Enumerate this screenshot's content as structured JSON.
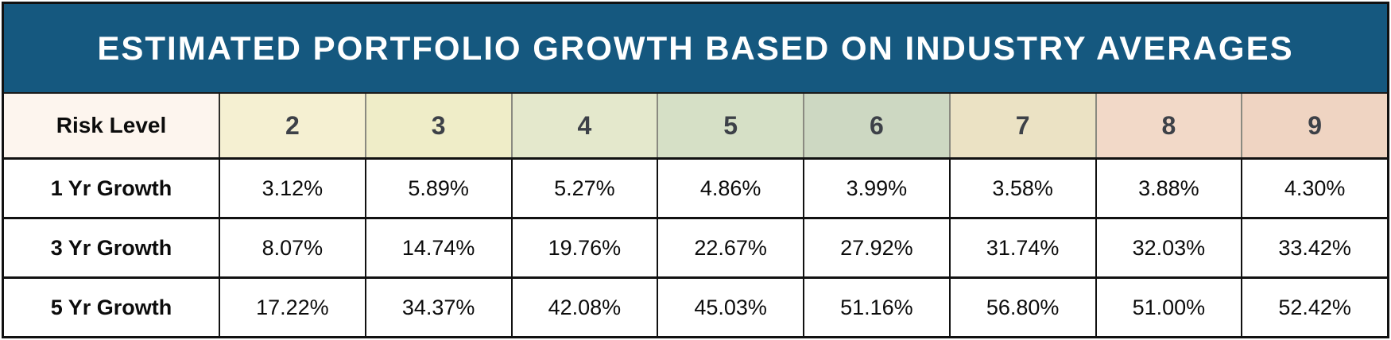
{
  "title": "ESTIMATED PORTFOLIO GROWTH BASED ON INDUSTRY AVERAGES",
  "table": {
    "corner_label": "Risk Level",
    "risk_levels": [
      "2",
      "3",
      "4",
      "5",
      "6",
      "7",
      "8",
      "9"
    ],
    "rows": [
      {
        "label": "1 Yr Growth",
        "values": [
          "3.12%",
          "5.89%",
          "5.27%",
          "4.86%",
          "3.99%",
          "3.58%",
          "3.88%",
          "4.30%"
        ]
      },
      {
        "label": "3 Yr Growth",
        "values": [
          "8.07%",
          "14.74%",
          "19.76%",
          "22.67%",
          "27.92%",
          "31.74%",
          "32.03%",
          "33.42%"
        ]
      },
      {
        "label": "5 Yr Growth",
        "values": [
          "17.22%",
          "34.37%",
          "42.08%",
          "45.03%",
          "51.16%",
          "56.80%",
          "51.00%",
          "52.42%"
        ]
      }
    ]
  },
  "palette": {
    "title_bar_blue": "#15587f",
    "title_text": "#ffffff",
    "outer_border": "#111111",
    "corner_cell_bg": "#fdf5ee",
    "risk_2_bg": "#f5f0d2",
    "risk_3_bg": "#efedc8",
    "risk_4_bg": "#e4e8cc",
    "risk_5_bg": "#d6e0c6",
    "risk_6_bg": "#cdd8c2",
    "risk_7_bg": "#ebe2c4",
    "risk_8_bg": "#f2d9c8",
    "risk_9_bg": "#efd4c2",
    "header_number_text": "#3d4148",
    "body_text": "#0c0c0c"
  },
  "chart_data": {
    "type": "table",
    "title": "ESTIMATED PORTFOLIO GROWTH BASED ON INDUSTRY AVERAGES",
    "columns": [
      "Risk Level",
      "2",
      "3",
      "4",
      "5",
      "6",
      "7",
      "8",
      "9"
    ],
    "rows": [
      {
        "label": "1 Yr Growth",
        "values_pct": [
          3.12,
          5.89,
          5.27,
          4.86,
          3.99,
          3.58,
          3.88,
          4.3
        ]
      },
      {
        "label": "3 Yr Growth",
        "values_pct": [
          8.07,
          14.74,
          19.76,
          22.67,
          27.92,
          31.74,
          32.03,
          33.42
        ]
      },
      {
        "label": "5 Yr Growth",
        "values_pct": [
          17.22,
          34.37,
          42.08,
          45.03,
          51.16,
          56.8,
          51.0,
          52.42
        ]
      }
    ]
  }
}
